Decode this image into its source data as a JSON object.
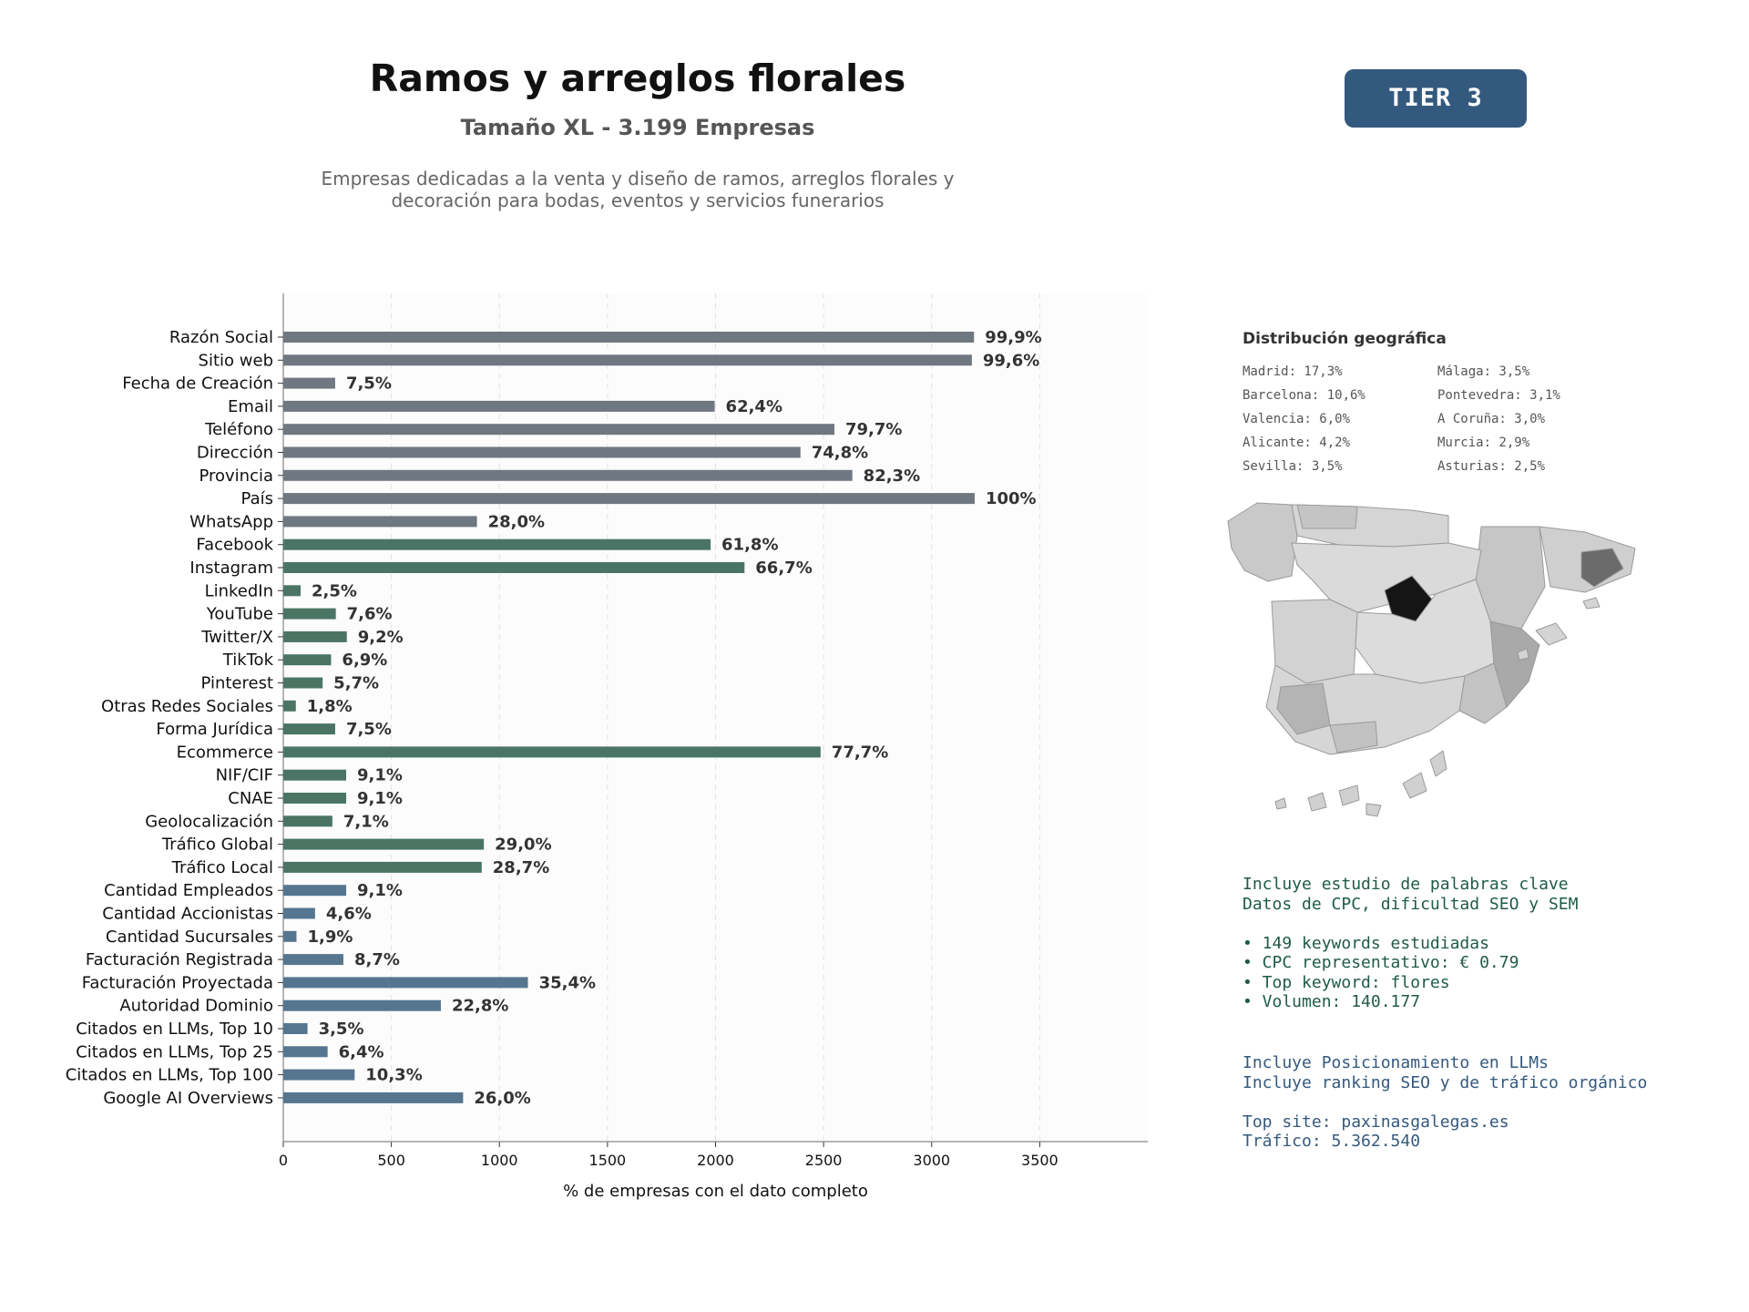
{
  "header": {
    "title": "Ramos y arreglos florales",
    "subtitle": "Tamaño XL - 3.199 Empresas",
    "description_lines": [
      "Empresas dedicadas a la venta y diseño de ramos, arreglos florales y",
      "decoración para bodas, eventos y servicios funerarios"
    ],
    "tier": "TIER 3"
  },
  "colors": {
    "gray": "#6f7780",
    "green": "#4a7565",
    "blue": "#567690"
  },
  "chart_data": {
    "type": "bar",
    "orientation": "horizontal",
    "xlabel": "% de empresas con el dato completo",
    "xlim": [
      0,
      4000
    ],
    "xticks": [
      0,
      500,
      1000,
      1500,
      2000,
      2500,
      3000,
      3500
    ],
    "grid": "vertical dashed",
    "categories": [
      "Razón Social",
      "Sitio web",
      "Fecha de Creación",
      "Email",
      "Teléfono",
      "Dirección",
      "Provincia",
      "País",
      "WhatsApp",
      "Facebook",
      "Instagram",
      "LinkedIn",
      "YouTube",
      "Twitter/X",
      "TikTok",
      "Pinterest",
      "Otras Redes Sociales",
      "Forma Jurídica",
      "Ecommerce",
      "NIF/CIF",
      "CNAE",
      "Geolocalización",
      "Tráfico Global",
      "Tráfico Local",
      "Cantidad Empleados",
      "Cantidad Accionistas",
      "Cantidad Sucursales",
      "Facturación Registrada",
      "Facturación Proyectada",
      "Autoridad Dominio",
      "Citados en LLMs, Top 10",
      "Citados en LLMs, Top 25",
      "Citados en LLMs, Top 100",
      "Google AI Overviews"
    ],
    "values": [
      3196,
      3186,
      240,
      1996,
      2550,
      2393,
      2633,
      3199,
      896,
      1977,
      2134,
      80,
      243,
      294,
      221,
      182,
      58,
      240,
      2486,
      291,
      291,
      227,
      928,
      918,
      291,
      147,
      61,
      278,
      1132,
      729,
      112,
      205,
      330,
      832
    ],
    "labels": [
      "99,9%",
      "99,6%",
      "7,5%",
      "62,4%",
      "79,7%",
      "74,8%",
      "82,3%",
      "100%",
      "28,0%",
      "61,8%",
      "66,7%",
      "2,5%",
      "7,6%",
      "9,2%",
      "6,9%",
      "5,7%",
      "1,8%",
      "7,5%",
      "77,7%",
      "9,1%",
      "9,1%",
      "7,1%",
      "29,0%",
      "28,7%",
      "9,1%",
      "4,6%",
      "1,9%",
      "8,7%",
      "35,4%",
      "22,8%",
      "3,5%",
      "6,4%",
      "10,3%",
      "26,0%"
    ],
    "groups": [
      "gray",
      "gray",
      "gray",
      "gray",
      "gray",
      "gray",
      "gray",
      "gray",
      "gray",
      "green",
      "green",
      "green",
      "green",
      "green",
      "green",
      "green",
      "green",
      "green",
      "green",
      "green",
      "green",
      "green",
      "green",
      "green",
      "blue",
      "blue",
      "blue",
      "blue",
      "blue",
      "blue",
      "blue",
      "blue",
      "blue",
      "blue"
    ]
  },
  "geo": {
    "title": "Distribución geográfica",
    "items": [
      "Madrid: 17,3%",
      "Barcelona: 10,6%",
      "Valencia: 6,0%",
      "Alicante: 4,2%",
      "Sevilla: 3,5%",
      "Málaga: 3,5%",
      "Pontevedra: 3,1%",
      "A Coruña: 3,0%",
      "Murcia: 2,9%",
      "Asturias: 2,5%"
    ]
  },
  "info": {
    "keywords_lines": [
      "Incluye estudio de palabras clave",
      "Datos de CPC, dificultad SEO y SEM",
      "",
      "• 149 keywords estudiadas",
      "• CPC representativo: € 0.79",
      "• Top keyword: flores",
      "• Volumen: 140.177"
    ],
    "llm_lines": [
      "Incluye Posicionamiento en LLMs",
      "Incluye ranking SEO y de tráfico orgánico",
      "",
      "Top site: paxinasgalegas.es",
      "Tráfico: 5.362.540"
    ]
  }
}
